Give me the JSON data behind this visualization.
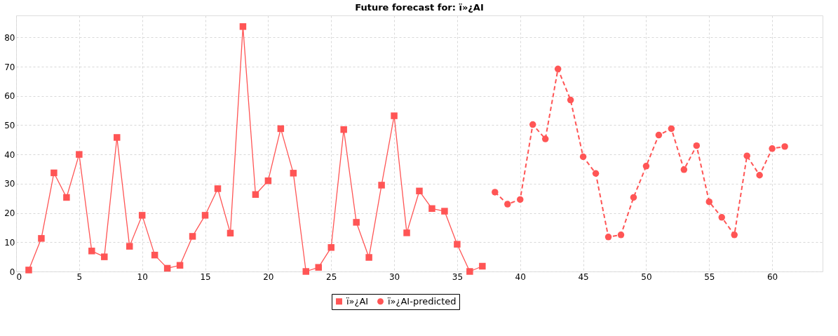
{
  "chart_data": {
    "type": "line",
    "title": "Future forecast for: ï»¿AI",
    "xlim": [
      0,
      64
    ],
    "xticks": [
      0,
      5,
      10,
      15,
      20,
      25,
      30,
      35,
      40,
      45,
      50,
      55,
      60
    ],
    "ylim": [
      0,
      87.5
    ],
    "yticks": [
      0,
      10,
      20,
      30,
      40,
      50,
      60,
      70,
      80
    ],
    "grid": true,
    "legend": "bottom",
    "series": [
      {
        "name": "ï»¿AI",
        "color": "#ff5555",
        "marker": "square",
        "line_style": "solid",
        "x": [
          1,
          2,
          3,
          4,
          5,
          6,
          7,
          8,
          9,
          10,
          11,
          12,
          13,
          14,
          15,
          16,
          17,
          18,
          19,
          20,
          21,
          22,
          23,
          24,
          25,
          26,
          27,
          28,
          29,
          30,
          31,
          32,
          33,
          34,
          35,
          36,
          37
        ],
        "values": [
          0.5,
          11.3,
          33.7,
          25.3,
          40,
          7,
          5,
          45.8,
          8.6,
          19.2,
          5.6,
          1.1,
          2.1,
          12,
          19.2,
          28.3,
          13.1,
          83.7,
          26.3,
          31,
          48.8,
          33.6,
          0,
          1.4,
          8.2,
          48.5,
          16.8,
          4.8,
          29.5,
          53.2,
          13.2,
          27.5,
          21.5,
          20.6,
          9.3,
          0,
          1.8
        ]
      },
      {
        "name": "ï»¿AI-predicted",
        "color": "#ff5555",
        "marker": "circle",
        "line_style": "dashed",
        "x": [
          38,
          39,
          40,
          41,
          42,
          43,
          44,
          45,
          46,
          47,
          48,
          49,
          50,
          51,
          52,
          53,
          54,
          55,
          56,
          57,
          58,
          59,
          60,
          61
        ],
        "values": [
          27.1,
          23,
          24.6,
          50.2,
          45.3,
          69.2,
          58.6,
          39.2,
          33.5,
          11.8,
          12.5,
          25.3,
          36,
          46.6,
          48.8,
          34.8,
          43,
          23.8,
          18.5,
          12.5,
          39.5,
          32.9,
          42,
          42.7
        ]
      }
    ]
  }
}
